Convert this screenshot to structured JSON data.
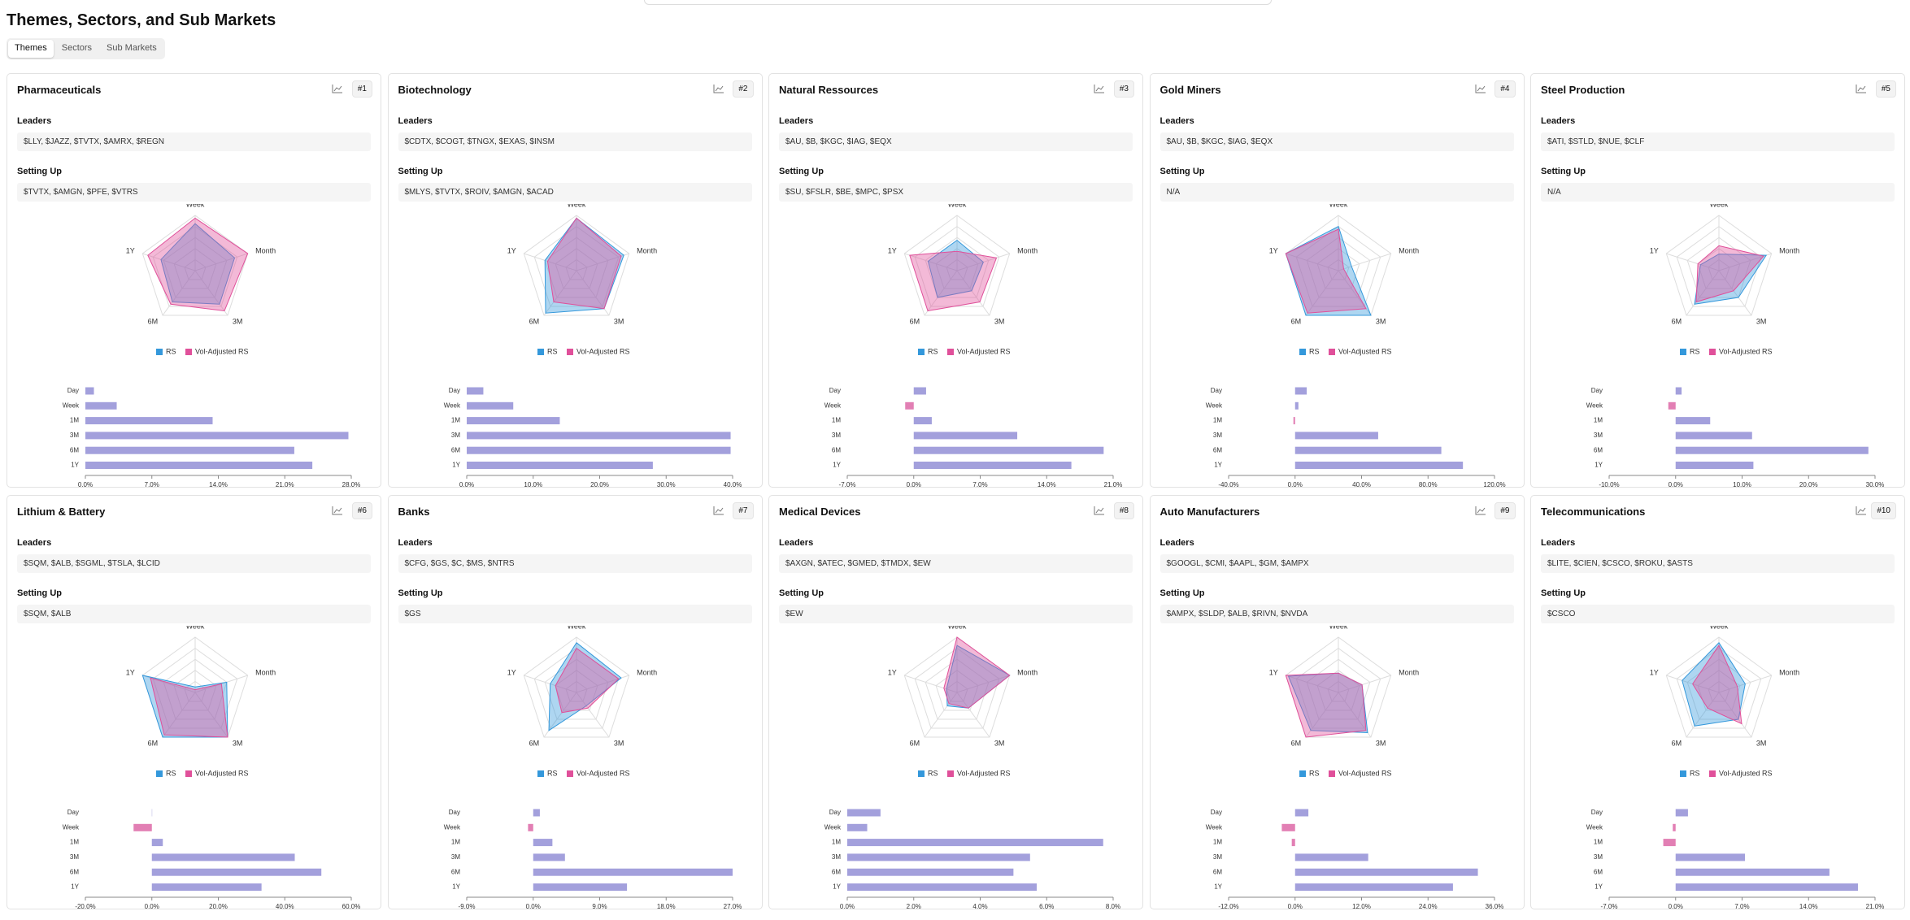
{
  "header": {
    "title": "Themes, Sectors, and Sub Markets"
  },
  "tabs": [
    "Themes",
    "Sectors",
    "Sub Markets"
  ],
  "active_tab": 0,
  "cards": [
    {
      "title": "Pharmaceuticals",
      "rank": "#1",
      "leaders_label": "Leaders",
      "leaders": "$LLY, $JAZZ, $TVTX, $AMRX, $REGN",
      "setting_up_label": "Setting Up",
      "setting_up": "$TVTX, $AMGN, $PFE, $VTRS",
      "radar": {
        "type": "radar",
        "axes": [
          "Week",
          "Month",
          "3M",
          "6M",
          "1Y"
        ],
        "rlim": [
          0,
          100
        ],
        "rticks": [
          20,
          40,
          60,
          80,
          100
        ],
        "series": [
          {
            "name": "RS",
            "color": "#3498db",
            "values": [
              85,
              75,
              75,
              70,
              65
            ]
          },
          {
            "name": "Vol-Adjusted RS",
            "color": "#e0509a",
            "values": [
              95,
              100,
              90,
              75,
              90
            ]
          }
        ]
      },
      "bars": {
        "type": "bar",
        "categories": [
          "Day",
          "Week",
          "1M",
          "3M",
          "6M",
          "1Y"
        ],
        "values": [
          0.9,
          3.3,
          13.4,
          27.7,
          22,
          23.9
        ],
        "xlim": [
          0,
          28
        ],
        "xticks": [
          {
            "value": 0,
            "label": "0.0%"
          },
          {
            "value": 7,
            "label": "7.0%"
          },
          {
            "value": 14,
            "label": "14.0%"
          },
          {
            "value": 21,
            "label": "21.0%"
          },
          {
            "value": 28,
            "label": "28.0%"
          }
        ],
        "color": "#a3a0dc",
        "negative_color": "#e27fb4"
      }
    },
    {
      "title": "Biotechnology",
      "rank": "#2",
      "leaders_label": "Leaders",
      "leaders": "$CDTX, $COGT, $TNGX, $EXAS, $INSM",
      "setting_up_label": "Setting Up",
      "setting_up": "$MLYS, $TVTX, $ROIV, $AMGN, $ACAD",
      "radar": {
        "type": "radar",
        "axes": [
          "Week",
          "Month",
          "3M",
          "6M",
          "1Y"
        ],
        "rlim": [
          0,
          100
        ],
        "rticks": [
          20,
          40,
          60,
          80,
          100
        ],
        "series": [
          {
            "name": "RS",
            "color": "#3498db",
            "values": [
              95,
              90,
              85,
              95,
              60
            ]
          },
          {
            "name": "Vol-Adjusted RS",
            "color": "#e0509a",
            "values": [
              95,
              85,
              85,
              70,
              55
            ]
          }
        ]
      },
      "bars": {
        "type": "bar",
        "categories": [
          "Day",
          "Week",
          "1M",
          "3M",
          "6M",
          "1Y"
        ],
        "values": [
          2.5,
          7,
          14,
          39.7,
          39.7,
          28
        ],
        "xlim": [
          0,
          40
        ],
        "xticks": [
          {
            "value": 0,
            "label": "0.0%"
          },
          {
            "value": 10,
            "label": "10.0%"
          },
          {
            "value": 20,
            "label": "20.0%"
          },
          {
            "value": 30,
            "label": "30.0%"
          },
          {
            "value": 40,
            "label": "40.0%"
          }
        ],
        "color": "#a3a0dc",
        "negative_color": "#e27fb4"
      }
    },
    {
      "title": "Natural Ressources",
      "rank": "#3",
      "leaders_label": "Leaders",
      "leaders": "$AU, $B, $KGC, $IAG, $EQX",
      "setting_up_label": "Setting Up",
      "setting_up": "$SU, $FSLR, $BE, $MPC, $PSX",
      "radar": {
        "type": "radar",
        "axes": [
          "Week",
          "Month",
          "3M",
          "6M",
          "1Y"
        ],
        "rlim": [
          0,
          100
        ],
        "rticks": [
          20,
          40,
          60,
          80,
          100
        ],
        "series": [
          {
            "name": "RS",
            "color": "#3498db",
            "values": [
              55,
              50,
              45,
              60,
              55
            ]
          },
          {
            "name": "Vol-Adjusted RS",
            "color": "#e0509a",
            "values": [
              35,
              75,
              70,
              90,
              90
            ]
          }
        ]
      },
      "bars": {
        "type": "bar",
        "categories": [
          "Day",
          "Week",
          "1M",
          "3M",
          "6M",
          "1Y"
        ],
        "values": [
          1.3,
          -0.9,
          1.9,
          10.9,
          20,
          16.6
        ],
        "xlim": [
          -7,
          21
        ],
        "xticks": [
          {
            "value": -7,
            "label": "-7.0%"
          },
          {
            "value": 0,
            "label": "0.0%"
          },
          {
            "value": 7,
            "label": "7.0%"
          },
          {
            "value": 14,
            "label": "14.0%"
          },
          {
            "value": 21,
            "label": "21.0%"
          }
        ],
        "color": "#a3a0dc",
        "negative_color": "#e27fb4"
      }
    },
    {
      "title": "Gold Miners",
      "rank": "#4",
      "leaders_label": "Leaders",
      "leaders": "$AU, $B, $KGC, $IAG, $EQX",
      "setting_up_label": "Setting Up",
      "setting_up": "N/A",
      "radar": {
        "type": "radar",
        "axes": [
          "Week",
          "Month",
          "3M",
          "6M",
          "1Y"
        ],
        "rlim": [
          0,
          100
        ],
        "rticks": [
          20,
          40,
          60,
          80,
          100
        ],
        "series": [
          {
            "name": "RS",
            "color": "#3498db",
            "values": [
              80,
              25,
              100,
              100,
              100
            ]
          },
          {
            "name": "Vol-Adjusted RS",
            "color": "#e0509a",
            "values": [
              75,
              10,
              85,
              95,
              100
            ]
          }
        ]
      },
      "bars": {
        "type": "bar",
        "categories": [
          "Day",
          "Week",
          "1M",
          "3M",
          "6M",
          "1Y"
        ],
        "values": [
          7,
          2,
          -1,
          50,
          88,
          101
        ],
        "xlim": [
          -40,
          120
        ],
        "xticks": [
          {
            "value": -40,
            "label": "-40.0%"
          },
          {
            "value": 0,
            "label": "0.0%"
          },
          {
            "value": 40,
            "label": "40.0%"
          },
          {
            "value": 80,
            "label": "80.0%"
          },
          {
            "value": 120,
            "label": "120.0%"
          }
        ],
        "color": "#a3a0dc",
        "negative_color": "#e27fb4"
      }
    },
    {
      "title": "Steel Production",
      "rank": "#5",
      "leaders_label": "Leaders",
      "leaders": "$ATI, $STLD, $NUE, $CLF",
      "setting_up_label": "Setting Up",
      "setting_up": "N/A",
      "radar": {
        "type": "radar",
        "axes": [
          "Week",
          "Month",
          "3M",
          "6M",
          "1Y"
        ],
        "rlim": [
          0,
          100
        ],
        "rticks": [
          20,
          40,
          60,
          80,
          100
        ],
        "series": [
          {
            "name": "RS",
            "color": "#3498db",
            "values": [
              30,
              90,
              60,
              75,
              35
            ]
          },
          {
            "name": "Vol-Adjusted RS",
            "color": "#e0509a",
            "values": [
              45,
              85,
              45,
              70,
              40
            ]
          }
        ]
      },
      "bars": {
        "type": "bar",
        "categories": [
          "Day",
          "Week",
          "1M",
          "3M",
          "6M",
          "1Y"
        ],
        "values": [
          0.9,
          -1.1,
          5.2,
          11.5,
          29,
          11.7
        ],
        "xlim": [
          -10,
          30
        ],
        "xticks": [
          {
            "value": -10,
            "label": "-10.0%"
          },
          {
            "value": 0,
            "label": "0.0%"
          },
          {
            "value": 10,
            "label": "10.0%"
          },
          {
            "value": 20,
            "label": "20.0%"
          },
          {
            "value": 30,
            "label": "30.0%"
          }
        ],
        "color": "#a3a0dc",
        "negative_color": "#e27fb4"
      }
    },
    {
      "title": "Lithium & Battery",
      "rank": "#6",
      "leaders_label": "Leaders",
      "leaders": "$SQM, $ALB, $SGML, $TSLA, $LCID",
      "setting_up_label": "Setting Up",
      "setting_up": "$SQM, $ALB",
      "radar": {
        "type": "radar",
        "axes": [
          "Week",
          "Month",
          "3M",
          "6M",
          "1Y"
        ],
        "rlim": [
          0,
          100
        ],
        "rticks": [
          20,
          40,
          60,
          80,
          100
        ],
        "series": [
          {
            "name": "RS",
            "color": "#3498db",
            "values": [
              10,
              60,
              100,
              100,
              100
            ]
          },
          {
            "name": "Vol-Adjusted RS",
            "color": "#e0509a",
            "values": [
              5,
              50,
              100,
              95,
              85
            ]
          }
        ]
      },
      "bars": {
        "type": "bar",
        "categories": [
          "Day",
          "Week",
          "1M",
          "3M",
          "6M",
          "1Y"
        ],
        "values": [
          0.1,
          -5.5,
          3.3,
          43,
          51,
          33
        ],
        "xlim": [
          -20,
          60
        ],
        "xticks": [
          {
            "value": -20,
            "label": "-20.0%"
          },
          {
            "value": 0,
            "label": "0.0%"
          },
          {
            "value": 20,
            "label": "20.0%"
          },
          {
            "value": 40,
            "label": "40.0%"
          },
          {
            "value": 60,
            "label": "60.0%"
          }
        ],
        "color": "#a3a0dc",
        "negative_color": "#e27fb4"
      }
    },
    {
      "title": "Banks",
      "rank": "#7",
      "leaders_label": "Leaders",
      "leaders": "$CFG, $GS, $C, $MS, $NTRS",
      "setting_up_label": "Setting Up",
      "setting_up": "$GS",
      "radar": {
        "type": "radar",
        "axes": [
          "Week",
          "Month",
          "3M",
          "6M",
          "1Y"
        ],
        "rlim": [
          0,
          100
        ],
        "rticks": [
          20,
          40,
          60,
          80,
          100
        ],
        "series": [
          {
            "name": "RS",
            "color": "#3498db",
            "values": [
              90,
              85,
              30,
              85,
              50
            ]
          },
          {
            "name": "Vol-Adjusted RS",
            "color": "#e0509a",
            "values": [
              80,
              80,
              35,
              45,
              40
            ]
          }
        ]
      },
      "bars": {
        "type": "bar",
        "categories": [
          "Day",
          "Week",
          "1M",
          "3M",
          "6M",
          "1Y"
        ],
        "values": [
          0.9,
          -0.7,
          2.6,
          4.3,
          27,
          12.7
        ],
        "xlim": [
          -9,
          27
        ],
        "xticks": [
          {
            "value": -9,
            "label": "-9.0%"
          },
          {
            "value": 0,
            "label": "0.0%"
          },
          {
            "value": 9,
            "label": "9.0%"
          },
          {
            "value": 18,
            "label": "18.0%"
          },
          {
            "value": 27,
            "label": "27.0%"
          }
        ],
        "color": "#a3a0dc",
        "negative_color": "#e27fb4"
      }
    },
    {
      "title": "Medical Devices",
      "rank": "#8",
      "leaders_label": "Leaders",
      "leaders": "$AXGN, $ATEC, $GMED, $TMDX, $EW",
      "setting_up_label": "Setting Up",
      "setting_up": "$EW",
      "radar": {
        "type": "radar",
        "axes": [
          "Week",
          "Month",
          "3M",
          "6M",
          "1Y"
        ],
        "rlim": [
          0,
          100
        ],
        "rticks": [
          20,
          40,
          60,
          80,
          100
        ],
        "series": [
          {
            "name": "RS",
            "color": "#3498db",
            "values": [
              85,
              100,
              35,
              30,
              20
            ]
          },
          {
            "name": "Vol-Adjusted RS",
            "color": "#e0509a",
            "values": [
              100,
              100,
              35,
              25,
              25
            ]
          }
        ]
      },
      "bars": {
        "type": "bar",
        "categories": [
          "Day",
          "Week",
          "1M",
          "3M",
          "6M",
          "1Y"
        ],
        "values": [
          1,
          0.6,
          7.7,
          5.5,
          5,
          5.7
        ],
        "xlim": [
          0,
          8
        ],
        "xticks": [
          {
            "value": 0,
            "label": "0.0%"
          },
          {
            "value": 2,
            "label": "2.0%"
          },
          {
            "value": 4,
            "label": "4.0%"
          },
          {
            "value": 6,
            "label": "6.0%"
          },
          {
            "value": 8,
            "label": "8.0%"
          }
        ],
        "color": "#a3a0dc",
        "negative_color": "#e27fb4"
      }
    },
    {
      "title": "Auto Manufacturers",
      "rank": "#9",
      "leaders_label": "Leaders",
      "leaders": "$GOOGL, $CMI, $AAPL, $GM, $AMPX",
      "setting_up_label": "Setting Up",
      "setting_up": "$AMPX, $SLDP, $ALB, $RIVN, $NVDA",
      "radar": {
        "type": "radar",
        "axes": [
          "Week",
          "Month",
          "3M",
          "6M",
          "1Y"
        ],
        "rlim": [
          0,
          100
        ],
        "rticks": [
          20,
          40,
          60,
          80,
          100
        ],
        "series": [
          {
            "name": "RS",
            "color": "#3498db",
            "values": [
              35,
              45,
              90,
              85,
              95
            ]
          },
          {
            "name": "Vol-Adjusted RS",
            "color": "#e0509a",
            "values": [
              35,
              45,
              85,
              100,
              100
            ]
          }
        ]
      },
      "bars": {
        "type": "bar",
        "categories": [
          "Day",
          "Week",
          "1M",
          "3M",
          "6M",
          "1Y"
        ],
        "values": [
          2.4,
          -2.4,
          -0.6,
          13.2,
          33,
          28.5
        ],
        "xlim": [
          -12,
          36
        ],
        "xticks": [
          {
            "value": -12,
            "label": "-12.0%"
          },
          {
            "value": 0,
            "label": "0.0%"
          },
          {
            "value": 12,
            "label": "12.0%"
          },
          {
            "value": 24,
            "label": "24.0%"
          },
          {
            "value": 36,
            "label": "36.0%"
          }
        ],
        "color": "#a3a0dc",
        "negative_color": "#e27fb4"
      }
    },
    {
      "title": "Telecommunications",
      "rank": "#10",
      "leaders_label": "Leaders",
      "leaders": "$LITE, $CIEN, $CSCO, $ROKU, $ASTS",
      "setting_up_label": "Setting Up",
      "setting_up": "$CSCO",
      "radar": {
        "type": "radar",
        "axes": [
          "Week",
          "Month",
          "3M",
          "6M",
          "1Y"
        ],
        "rlim": [
          0,
          100
        ],
        "rticks": [
          20,
          40,
          60,
          80,
          100
        ],
        "series": [
          {
            "name": "RS",
            "color": "#3498db",
            "values": [
              90,
              50,
              60,
              75,
              70
            ]
          },
          {
            "name": "Vol-Adjusted RS",
            "color": "#e0509a",
            "values": [
              85,
              35,
              70,
              35,
              50
            ]
          }
        ]
      },
      "bars": {
        "type": "bar",
        "categories": [
          "Day",
          "Week",
          "1M",
          "3M",
          "6M",
          "1Y"
        ],
        "values": [
          1.3,
          -0.3,
          -1.3,
          7.3,
          16.2,
          19.2
        ],
        "xlim": [
          -7,
          21
        ],
        "xticks": [
          {
            "value": -7,
            "label": "-7.0%"
          },
          {
            "value": 0,
            "label": "0.0%"
          },
          {
            "value": 7,
            "label": "7.0%"
          },
          {
            "value": 14,
            "label": "14.0%"
          },
          {
            "value": 21,
            "label": "21.0%"
          }
        ],
        "color": "#a3a0dc",
        "negative_color": "#e27fb4"
      }
    }
  ]
}
